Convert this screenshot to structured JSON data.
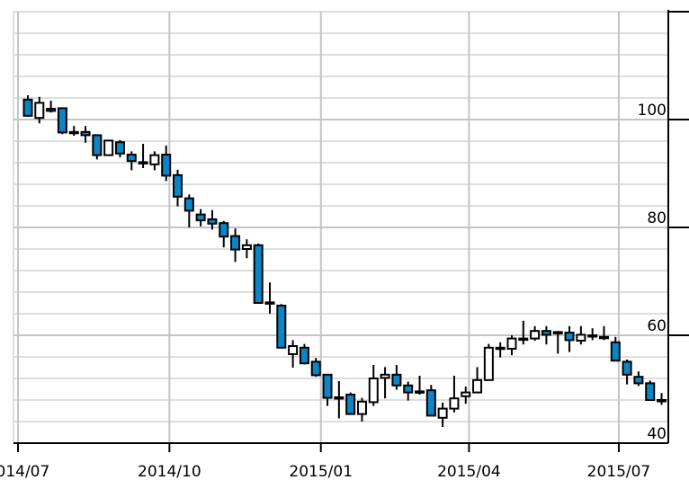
{
  "chart_data": {
    "type": "candlestick",
    "title": "",
    "xlabel": "",
    "ylabel": "",
    "ylim": [
      40,
      120
    ],
    "y_scale": "linear",
    "y_axis_side": "right",
    "y_ticks": [
      40,
      60,
      80,
      100
    ],
    "y_minor_grid_step": 4,
    "x_ticks": [
      {
        "date": "2014-07-01",
        "label": "2014/07"
      },
      {
        "date": "2014-10-01",
        "label": "2014/10"
      },
      {
        "date": "2015-01-01",
        "label": "2015/01"
      },
      {
        "date": "2015-04-01",
        "label": "2015/04"
      },
      {
        "date": "2015-07-01",
        "label": "2015/07"
      }
    ],
    "xlim": [
      "2014-07-01",
      "2015-08-01"
    ],
    "grid": true,
    "period": "weekly",
    "colors": {
      "down": "#0a86c6",
      "up": "#ffffff",
      "outline": "#000000",
      "grid_major": "#c4c4c4",
      "grid_minor": "#dedede"
    },
    "start_date": "2014-07-07",
    "candles": [
      [
        103.7,
        104.5,
        100.5,
        100.7
      ],
      [
        100.3,
        104.2,
        99.3,
        103.1
      ],
      [
        102.0,
        103.5,
        101.3,
        101.6
      ],
      [
        102.1,
        102.1,
        97.3,
        97.6
      ],
      [
        97.7,
        98.8,
        97.0,
        97.6
      ],
      [
        97.7,
        98.8,
        95.7,
        97.1
      ],
      [
        97.1,
        97.1,
        92.6,
        93.4
      ],
      [
        93.4,
        96.1,
        93.4,
        96.1
      ],
      [
        95.8,
        96.2,
        93.0,
        93.7
      ],
      [
        93.5,
        94.1,
        90.6,
        92.3
      ],
      [
        92.1,
        95.5,
        91.0,
        92.0
      ],
      [
        91.7,
        94.1,
        90.6,
        93.4
      ],
      [
        93.5,
        95.2,
        88.6,
        89.6
      ],
      [
        89.7,
        90.7,
        83.9,
        85.7
      ],
      [
        85.4,
        86.1,
        80.0,
        83.1
      ],
      [
        82.4,
        83.4,
        80.2,
        81.3
      ],
      [
        81.5,
        83.2,
        79.6,
        80.7
      ],
      [
        80.8,
        81.2,
        76.3,
        78.3
      ],
      [
        78.4,
        79.8,
        73.6,
        75.9
      ],
      [
        76.0,
        77.8,
        74.3,
        76.7
      ],
      [
        76.7,
        77.0,
        66.0,
        66.0
      ],
      [
        66.1,
        69.8,
        64.0,
        65.9
      ],
      [
        65.5,
        65.8,
        57.7,
        57.7
      ],
      [
        56.5,
        59.1,
        54.0,
        58.0
      ],
      [
        57.7,
        58.4,
        54.6,
        54.8
      ],
      [
        55.1,
        55.8,
        52.3,
        52.6
      ],
      [
        52.7,
        52.7,
        46.9,
        48.4
      ],
      [
        48.5,
        51.5,
        44.6,
        48.4
      ],
      [
        49.0,
        49.4,
        45.4,
        45.4
      ],
      [
        45.4,
        48.4,
        44.0,
        47.7
      ],
      [
        47.6,
        54.5,
        46.9,
        52.0
      ],
      [
        52.1,
        54.1,
        48.3,
        52.7
      ],
      [
        52.7,
        54.5,
        49.9,
        50.7
      ],
      [
        50.7,
        51.4,
        47.9,
        49.4
      ],
      [
        49.6,
        52.5,
        49.0,
        49.5
      ],
      [
        49.8,
        50.8,
        45.1,
        45.1
      ],
      [
        44.7,
        47.5,
        43.0,
        46.4
      ],
      [
        46.4,
        52.5,
        45.7,
        48.3
      ],
      [
        48.7,
        50.5,
        47.3,
        49.4
      ],
      [
        49.4,
        54.1,
        49.4,
        51.7
      ],
      [
        51.7,
        58.4,
        51.7,
        57.7
      ],
      [
        57.6,
        58.7,
        55.9,
        57.7
      ],
      [
        57.5,
        60.0,
        56.3,
        59.4
      ],
      [
        59.3,
        62.7,
        58.3,
        59.4
      ],
      [
        59.4,
        61.7,
        59.0,
        60.8
      ],
      [
        60.8,
        61.7,
        58.3,
        60.1
      ],
      [
        60.6,
        60.8,
        56.6,
        60.4
      ],
      [
        60.5,
        61.7,
        56.9,
        59.1
      ],
      [
        59.0,
        61.7,
        58.3,
        60.1
      ],
      [
        60.0,
        61.3,
        59.1,
        59.9
      ],
      [
        59.7,
        61.7,
        59.1,
        59.6
      ],
      [
        58.7,
        59.7,
        55.3,
        55.3
      ],
      [
        55.1,
        55.5,
        50.9,
        52.7
      ],
      [
        52.3,
        53.3,
        50.6,
        51.1
      ],
      [
        51.1,
        51.6,
        48.0,
        48.0
      ],
      [
        48.0,
        49.3,
        47.1,
        47.9
      ]
    ],
    "candle_fields": [
      "open",
      "high",
      "low",
      "close"
    ]
  }
}
